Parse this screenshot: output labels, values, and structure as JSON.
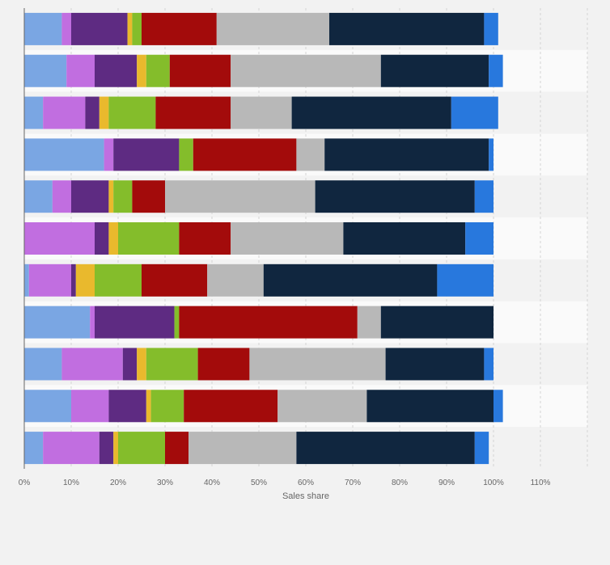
{
  "chart_data": {
    "type": "bar",
    "orientation": "horizontal",
    "stacked": true,
    "xlabel": "Sales share",
    "xlim": [
      0,
      120
    ],
    "xticks": [
      0,
      10,
      20,
      30,
      40,
      50,
      60,
      70,
      80,
      90,
      100,
      110
    ],
    "xtick_labels": [
      "0%",
      "10%",
      "20%",
      "30%",
      "40%",
      "50%",
      "60%",
      "70%",
      "80%",
      "90%",
      "100%",
      "110%"
    ],
    "grid": true,
    "legend": "none",
    "categories": [
      "",
      "",
      "",
      "",
      "",
      "",
      "",
      "",
      "",
      "",
      ""
    ],
    "colors": [
      "#7aa6e3",
      "#c16ee0",
      "#5e2b82",
      "#e9b92d",
      "#84bd2b",
      "#a30b0b",
      "#b8b8b8",
      "#10263f",
      "#2878dd"
    ],
    "series": [
      {
        "values": [
          8,
          9,
          4,
          17,
          6,
          0,
          1,
          14,
          8,
          10,
          4
        ]
      },
      {
        "values": [
          2,
          6,
          9,
          2,
          4,
          15,
          9,
          1,
          13,
          8,
          12
        ]
      },
      {
        "values": [
          12,
          9,
          3,
          14,
          8,
          3,
          1,
          17,
          3,
          8,
          3
        ]
      },
      {
        "values": [
          1,
          2,
          2,
          0,
          1,
          2,
          4,
          0,
          2,
          1,
          1
        ]
      },
      {
        "values": [
          2,
          5,
          10,
          3,
          4,
          13,
          10,
          1,
          11,
          7,
          10
        ]
      },
      {
        "values": [
          16,
          13,
          16,
          22,
          7,
          11,
          14,
          38,
          11,
          20,
          5
        ]
      },
      {
        "values": [
          24,
          32,
          13,
          6,
          32,
          24,
          12,
          5,
          29,
          19,
          23
        ]
      },
      {
        "values": [
          33,
          23,
          34,
          35,
          34,
          26,
          37,
          24,
          21,
          27,
          38
        ]
      },
      {
        "values": [
          3,
          3,
          10,
          1,
          4,
          6,
          12,
          0,
          2,
          2,
          3
        ]
      }
    ]
  }
}
